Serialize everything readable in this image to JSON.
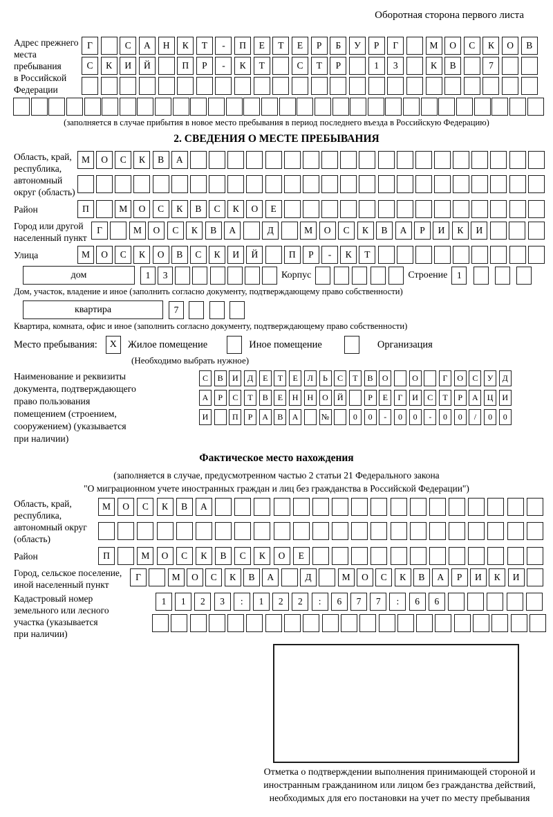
{
  "page": {
    "header_note": "Оборотная сторона первого листа"
  },
  "prev_address": {
    "label": "Адрес прежнего\nместа пребывания\nв Российской\nФедерации",
    "row1": "Г САНКТ-ПЕТЕРБУРГ МОСКОВ",
    "row2": "СКИЙ ПР-КТ СТР 13 КВ 7",
    "row3": "",
    "row4": "",
    "caption": "(заполняется в случае прибытия в новое место пребывания в период последнего въезда в Российскую Федерацию)"
  },
  "section2": {
    "title": "2. СВЕДЕНИЯ О МЕСТЕ ПРЕБЫВАНИЯ",
    "region": {
      "label": "Область, край,\nреспублика,\nавтономный\nокруг (область)",
      "row1": "МОСКВА",
      "row2": ""
    },
    "district": {
      "label": "Район",
      "value": "П МОСКВСКОЕ"
    },
    "city": {
      "label": "Город или другой\nнаселенный пункт",
      "value": "Г МОСКВА Д МОСКВАРИКИ"
    },
    "street": {
      "label": "Улица",
      "value": "МОСКОВСКИЙ ПР-КТ"
    },
    "house": {
      "box_label": "дом",
      "value": "13",
      "korpus_label": "Корпус",
      "korpus_value": "",
      "stroenie_label": "Строение",
      "stroenie_value": "1"
    },
    "house_caption": "Дом, участок, владение и иное (заполнить согласно документу, подтверждающему право собственности)",
    "apartment": {
      "box_label": "квартира",
      "value": "7"
    },
    "apartment_caption": "Квартира, комната, офис и иное (заполнить согласно документу, подтверждающему право собственности)",
    "stay_type": {
      "label": "Место пребывания:",
      "options": [
        {
          "label": "Жилое помещение",
          "checked": "X"
        },
        {
          "label": "Иное помещение",
          "checked": ""
        },
        {
          "label": "Организация",
          "checked": ""
        }
      ],
      "hint": "(Необходимо выбрать нужное)"
    },
    "document": {
      "label": "Наименование и реквизиты\nдокумента, подтверждающего\nправо пользования\nпомещением (строением,\nсооружением) (указывается\nпри наличии)",
      "row1": "СВИДЕТЕЛЬСТВО О ГОСУД",
      "row2": "АРСТВЕННОЙ РЕГИСТРАЦИ",
      "row3": "И ПРАВА № 00-00-00/000"
    }
  },
  "actual_location": {
    "title": "Фактическое место нахождения",
    "note_line1": "(заполняется в случае, предусмотренном частью 2 статьи 21 Федерального закона",
    "note_line2": "\"О миграционном учете иностранных граждан и лиц без гражданства в Российской Федерации\")",
    "region": {
      "label": "Область, край,\nреспублика,\nавтономный округ\n(область)",
      "row1": "МОСКВА",
      "row2": ""
    },
    "district": {
      "label": "Район",
      "value": "П МОСКВСКОЕ"
    },
    "city": {
      "label": "Город, сельское поселение,\nиной населенный пункт",
      "value": "Г МОСКВА Д МОСКВАРИКИ"
    },
    "cadastral": {
      "label": "Кадастровый номер\nземельного или лесного\nучастка (указывается\nпри наличии)",
      "row1": "1123:122:677:66",
      "row2": ""
    },
    "stamp_caption": "Отметка о подтверждении выполнения принимающей стороной и иностранным гражданином или лицом без гражданства действий, необходимых для его постановки на учет по месту пребывания"
  }
}
